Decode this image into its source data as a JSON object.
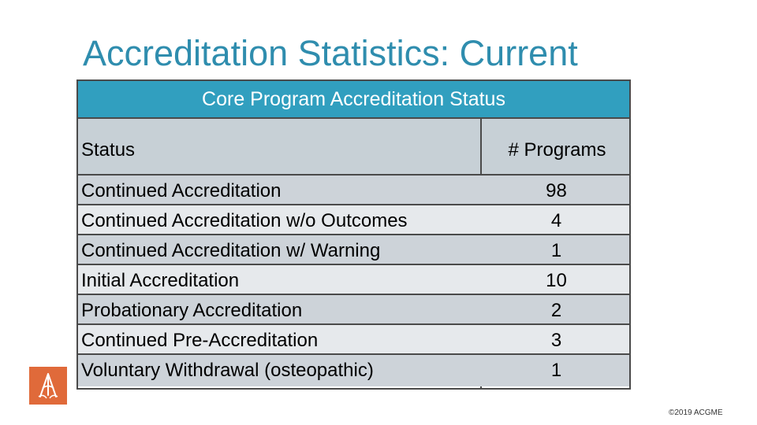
{
  "slide": {
    "title": "Accreditation Statistics: Current"
  },
  "table": {
    "caption": "Core Program Accreditation Status",
    "columns": {
      "status": "Status",
      "programs": "# Programs"
    },
    "rows": [
      {
        "status": "Continued Accreditation",
        "programs": "98"
      },
      {
        "status": "Continued Accreditation w/o Outcomes",
        "programs": "4"
      },
      {
        "status": "Continued Accreditation w/ Warning",
        "programs": "1"
      },
      {
        "status": "Initial Accreditation",
        "programs": "10"
      },
      {
        "status": "Probationary Accreditation",
        "programs": "2"
      },
      {
        "status": "Continued Pre-Accreditation",
        "programs": "3"
      },
      {
        "status": "Voluntary Withdrawal (osteopathic)",
        "programs": "1"
      }
    ]
  },
  "footer": {
    "copyright": "©2019 ACGME",
    "logo_icon": "acgme-logo-icon"
  },
  "colors": {
    "title": "#2f8dae",
    "header_band": "#319fbf",
    "logo": "#e06a3a"
  }
}
